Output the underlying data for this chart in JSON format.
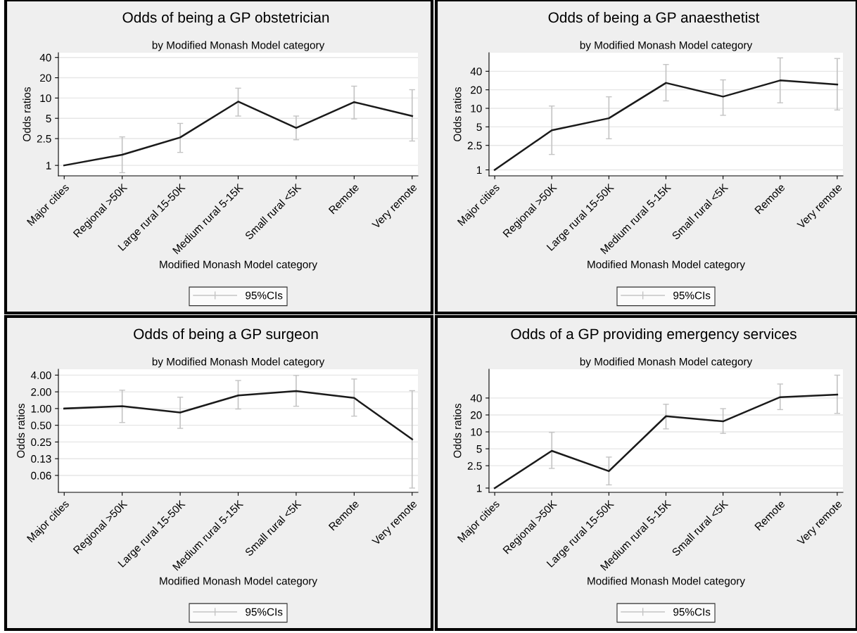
{
  "chart_data": [
    {
      "type": "line",
      "title": "Odds of being a GP obstetrician",
      "subtitle": "by Modified Monash Model category",
      "xlabel": "Modified Monash Model category",
      "ylabel": "Odds ratios",
      "categories": [
        "Major cities",
        "Regional >50K",
        "Large rural 15-50K",
        "Medium rural 5-15K",
        "Small rural <5K",
        "Remote",
        "Very remote"
      ],
      "log": true,
      "ylim": [
        0.7,
        47
      ],
      "yticks": [
        1,
        2.5,
        5,
        10,
        20,
        40
      ],
      "grid": "y",
      "legend": "bottom",
      "series": [
        {
          "name": "95%CIs",
          "color": "#1a1a1a",
          "values": [
            1,
            1.44,
            2.6,
            8.85,
            3.6,
            8.7,
            5.4
          ],
          "errors": [
            null,
            [
              0.78,
              2.65
            ],
            [
              1.56,
              4.2
            ],
            [
              5.4,
              14
            ],
            [
              2.4,
              5.4
            ],
            [
              4.9,
              15
            ],
            [
              2.3,
              13.3
            ]
          ]
        }
      ]
    },
    {
      "type": "line",
      "title": "Odds of being a GP anaesthetist",
      "subtitle": "by Modified Monash Model category",
      "xlabel": "Modified Monash Model category",
      "ylabel": "Odds ratios",
      "categories": [
        "Major cities",
        "Regional >50K",
        "Large rural 15-50K",
        "Medium rural 5-15K",
        "Small rural <5K",
        "Remote",
        "Very remote"
      ],
      "log": true,
      "ylim": [
        0.8,
        80
      ],
      "yticks": [
        1,
        2.5,
        5,
        10,
        20,
        40
      ],
      "grid": "y",
      "legend": "bottom",
      "series": [
        {
          "name": "95%CIs",
          "color": "#1a1a1a",
          "values": [
            1,
            4.4,
            6.9,
            25.9,
            15.5,
            28.4,
            24.3
          ],
          "errors": [
            null,
            [
              1.78,
              10.9
            ],
            [
              3.2,
              15.4
            ],
            [
              13.2,
              51.6
            ],
            [
              7.7,
              29
            ],
            [
              12.3,
              66
            ],
            [
              9.4,
              64.5
            ]
          ]
        }
      ]
    },
    {
      "type": "line",
      "title": "Odds of being a GP surgeon",
      "subtitle": "by Modified Monash Model category",
      "xlabel": "Modified Monash Model category",
      "ylabel": "Odds ratios",
      "categories": [
        "Major cities",
        "Regional >50K",
        "Large rural 15-50K",
        "Medium rural 5-15K",
        "Small rural <5K",
        "Remote",
        "Very remote"
      ],
      "log": true,
      "ylim": [
        0.031,
        5.1
      ],
      "yticks": [
        {
          "value": 0.0625,
          "label": "0.06"
        },
        {
          "value": 0.125,
          "label": "0.13"
        },
        {
          "value": 0.25,
          "label": "0.25"
        },
        {
          "value": 0.5,
          "label": "0.50"
        },
        {
          "value": 1,
          "label": "1.00"
        },
        {
          "value": 2,
          "label": "2.00"
        },
        {
          "value": 4,
          "label": "4.00"
        }
      ],
      "grid": "y",
      "legend": "bottom",
      "series": [
        {
          "name": "95%CIs",
          "color": "#1a1a1a",
          "values": [
            1,
            1.1,
            0.85,
            1.72,
            2.07,
            1.55,
            0.28
          ],
          "errors": [
            null,
            [
              0.56,
              2.14
            ],
            [
              0.44,
              1.6
            ],
            [
              0.98,
              3.2
            ],
            [
              1.1,
              3.95
            ],
            [
              0.73,
              3.4
            ],
            [
              0.037,
              2.1
            ]
          ]
        }
      ]
    },
    {
      "type": "line",
      "title": "Odds of a GP providing emergency services",
      "subtitle": "by Modified Monash Model category",
      "xlabel": "Modified Monash Model category",
      "ylabel": "Odds ratios",
      "categories": [
        "Major cities",
        "Regional >50K",
        "Large rural 15-50K",
        "Medium rural 5-15K",
        "Small rural <5K",
        "Remote",
        "Very remote"
      ],
      "log": true,
      "ylim": [
        0.84,
        130
      ],
      "yticks": [
        1,
        2.5,
        5,
        10,
        20,
        40
      ],
      "grid": "y",
      "legend": "bottom",
      "series": [
        {
          "name": "95%CIs",
          "color": "#1a1a1a",
          "values": [
            1,
            4.6,
            2.0,
            19,
            15.4,
            41.5,
            46
          ],
          "errors": [
            null,
            [
              2.24,
              9.8
            ],
            [
              1.14,
              3.56
            ],
            [
              11.3,
              31
            ],
            [
              9.4,
              25.9
            ],
            [
              24.9,
              71
            ],
            [
              21.3,
              102
            ]
          ]
        }
      ]
    }
  ]
}
